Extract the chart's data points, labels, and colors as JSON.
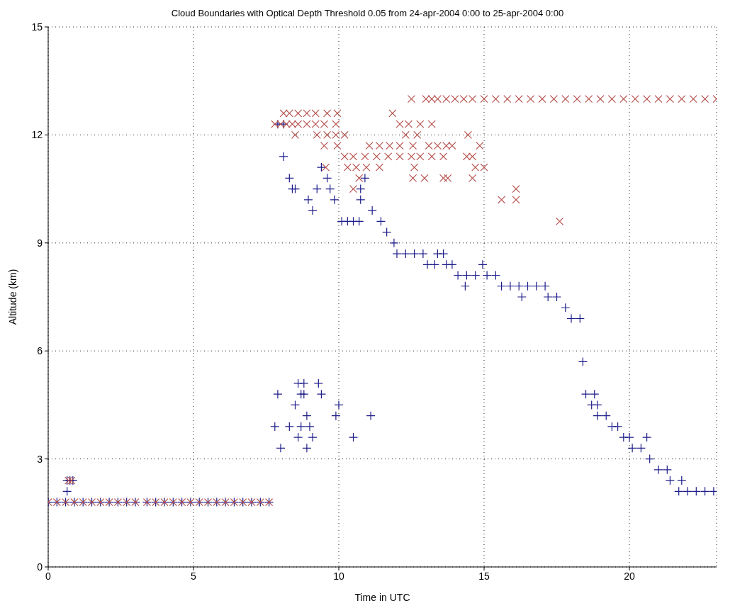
{
  "chart_data": {
    "type": "scatter",
    "title": "Cloud Boundaries with Optical Depth Threshold 0.05 from  24-apr-2004 0:00 to 25-apr-2004 0:00",
    "xlabel": "Time in UTC",
    "ylabel": "Altitude (km)",
    "xlim": [
      0,
      23
    ],
    "xticks": [
      0,
      5,
      10,
      15,
      20
    ],
    "ylim": [
      0,
      15
    ],
    "yticks": [
      0,
      3,
      6,
      9,
      12,
      15
    ],
    "grid": true,
    "series": [
      {
        "color": "#1c1c8a",
        "marker": "plus",
        "x": [
          0,
          0.3,
          0.6,
          0.9,
          1.2,
          1.5,
          1.8,
          2.1,
          2.4,
          2.7,
          3.0,
          3.4,
          3.7,
          4.0,
          4.3,
          4.6,
          4.9,
          5.2,
          5.5,
          5.8,
          6.1,
          6.4,
          6.7,
          7.0,
          7.3,
          7.6,
          0.65,
          0.75,
          0.85,
          0.65,
          7.8,
          7.9,
          8.0,
          8.3,
          8.5,
          8.6,
          8.8,
          8.6,
          8.7,
          8.7,
          8.8,
          8.9,
          8.9,
          9.0,
          9.1,
          9.3,
          9.4,
          9.9,
          10.0,
          10.5,
          11.1,
          7.9,
          8.1,
          8.1,
          8.3,
          8.4,
          8.5,
          8.95,
          9.1,
          9.25,
          9.4,
          9.6,
          9.7,
          9.85,
          10.1,
          10.3,
          10.5,
          10.7,
          10.75,
          10.75,
          10.9,
          11.15,
          11.45,
          11.65,
          11.9,
          12.0,
          12.3,
          12.6,
          12.9,
          13.05,
          13.3,
          13.4,
          13.6,
          13.7,
          13.9,
          14.1,
          14.35,
          14.4,
          14.7,
          14.95,
          15.1,
          15.4,
          15.6,
          15.9,
          16.2,
          16.3,
          16.5,
          16.8,
          17.1,
          17.2,
          17.5,
          17.8,
          18.0,
          18.3,
          18.4,
          18.5,
          18.7,
          18.8,
          18.9,
          18.9,
          19.2,
          19.4,
          19.6,
          19.8,
          20.0,
          20.1,
          20.4,
          20.6,
          20.7,
          21.0,
          21.3,
          21.4,
          21.8,
          21.7,
          22.0,
          22.3,
          22.6,
          22.9
        ],
        "values": [
          1.8,
          1.8,
          1.8,
          1.8,
          1.8,
          1.8,
          1.8,
          1.8,
          1.8,
          1.8,
          1.8,
          1.8,
          1.8,
          1.8,
          1.8,
          1.8,
          1.8,
          1.8,
          1.8,
          1.8,
          1.8,
          1.8,
          1.8,
          1.8,
          1.8,
          1.8,
          2.4,
          2.4,
          2.4,
          2.1,
          3.9,
          4.8,
          3.3,
          3.9,
          4.5,
          5.1,
          5.1,
          3.6,
          3.9,
          4.8,
          4.8,
          4.2,
          3.3,
          3.9,
          3.6,
          5.1,
          4.8,
          4.2,
          4.5,
          3.6,
          4.2,
          12.3,
          12.3,
          11.4,
          10.8,
          10.5,
          10.5,
          10.2,
          9.9,
          10.5,
          11.1,
          10.8,
          10.5,
          10.2,
          9.6,
          9.6,
          9.6,
          9.6,
          10.5,
          10.2,
          10.8,
          9.9,
          9.6,
          9.3,
          9.0,
          8.7,
          8.7,
          8.7,
          8.7,
          8.4,
          8.4,
          8.7,
          8.7,
          8.4,
          8.4,
          8.1,
          7.8,
          8.1,
          8.1,
          8.4,
          8.1,
          8.1,
          7.8,
          7.8,
          7.8,
          7.5,
          7.8,
          7.8,
          7.8,
          7.5,
          7.5,
          7.2,
          6.9,
          6.9,
          5.7,
          4.8,
          4.5,
          4.8,
          4.5,
          4.2,
          4.2,
          3.9,
          3.9,
          3.6,
          3.6,
          3.3,
          3.3,
          3.6,
          3.0,
          2.7,
          2.7,
          2.4,
          2.4,
          2.1,
          2.1,
          2.1,
          2.1,
          2.1
        ]
      },
      {
        "color": "#b5504c",
        "marker": "cross",
        "x": [
          0,
          0.3,
          0.6,
          0.9,
          1.2,
          1.5,
          1.8,
          2.1,
          2.4,
          2.7,
          3.0,
          3.4,
          3.7,
          4.0,
          4.3,
          4.6,
          4.9,
          5.2,
          5.5,
          5.8,
          6.1,
          6.4,
          6.7,
          7.0,
          7.3,
          7.6,
          0.7,
          0.8,
          7.8,
          8.0,
          8.2,
          8.4,
          8.6,
          8.9,
          9.2,
          9.5,
          9.9,
          8.1,
          8.3,
          8.6,
          8.9,
          9.2,
          9.6,
          9.95,
          11.85,
          12.1,
          12.4,
          12.8,
          13.2,
          8.5,
          9.25,
          9.6,
          9.9,
          10.2,
          12.3,
          12.7,
          14.45,
          9.5,
          9.95,
          11.05,
          11.4,
          11.75,
          12.1,
          12.55,
          13.1,
          13.4,
          13.7,
          13.9,
          14.85,
          10.2,
          10.5,
          10.9,
          11.3,
          11.7,
          12.1,
          12.5,
          12.8,
          13.2,
          13.6,
          14.4,
          14.6,
          9.55,
          10.3,
          10.6,
          10.95,
          11.4,
          12.6,
          14.7,
          15.0,
          10.7,
          12.55,
          12.95,
          13.6,
          13.75,
          14.6,
          10.5,
          16.1,
          15.6,
          16.1,
          17.6,
          12.5,
          13.0,
          13.2,
          13.4,
          13.7,
          14.0,
          14.3,
          14.6,
          15.0,
          15.4,
          15.8,
          16.2,
          16.6,
          17.0,
          17.4,
          17.8,
          18.2,
          18.6,
          19.0,
          19.4,
          19.8,
          20.2,
          20.6,
          21.0,
          21.4,
          21.8,
          22.2,
          22.6,
          23.0
        ],
        "values": [
          1.8,
          1.8,
          1.8,
          1.8,
          1.8,
          1.8,
          1.8,
          1.8,
          1.8,
          1.8,
          1.8,
          1.8,
          1.8,
          1.8,
          1.8,
          1.8,
          1.8,
          1.8,
          1.8,
          1.8,
          1.8,
          1.8,
          1.8,
          1.8,
          1.8,
          1.8,
          2.4,
          2.4,
          12.3,
          12.3,
          12.3,
          12.3,
          12.3,
          12.3,
          12.3,
          12.3,
          12.3,
          12.6,
          12.6,
          12.6,
          12.6,
          12.6,
          12.6,
          12.6,
          12.6,
          12.3,
          12.3,
          12.3,
          12.3,
          12.0,
          12.0,
          12.0,
          12.0,
          12.0,
          12.0,
          12.0,
          12.0,
          11.7,
          11.7,
          11.7,
          11.7,
          11.7,
          11.7,
          11.7,
          11.7,
          11.7,
          11.7,
          11.7,
          11.7,
          11.4,
          11.4,
          11.4,
          11.4,
          11.4,
          11.4,
          11.4,
          11.4,
          11.4,
          11.4,
          11.4,
          11.4,
          11.1,
          11.1,
          11.1,
          11.1,
          11.1,
          11.1,
          11.1,
          11.1,
          10.8,
          10.8,
          10.8,
          10.8,
          10.8,
          10.8,
          10.5,
          10.5,
          10.2,
          10.2,
          9.6,
          13.0,
          13.0,
          13.0,
          13.0,
          13.0,
          13.0,
          13.0,
          13.0,
          13.0,
          13.0,
          13.0,
          13.0,
          13.0,
          13.0,
          13.0,
          13.0,
          13.0,
          13.0,
          13.0,
          13.0,
          13.0,
          13.0,
          13.0,
          13.0,
          13.0,
          13.0,
          13.0,
          13.0,
          13.0
        ]
      }
    ]
  }
}
